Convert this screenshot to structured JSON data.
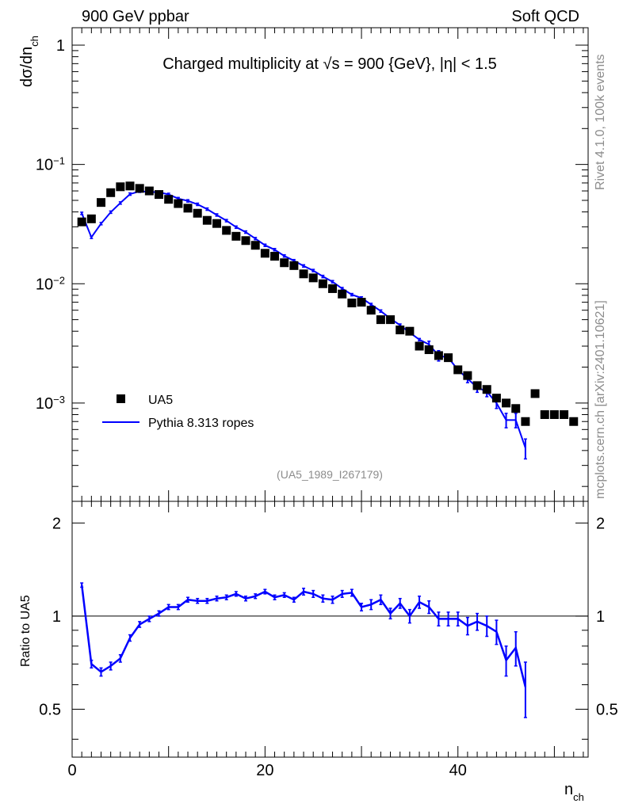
{
  "header": {
    "left": "900 GeV ppbar",
    "right": "Soft QCD",
    "side_top": "Rivet 4.1.0,  100k events",
    "side_bottom": "mcplots.cern.ch [arXiv:2401.10621]"
  },
  "chart_data": {
    "type": "scatter",
    "title_prefix": "Charged multiplicity at ",
    "title_sqrt": "√s",
    "title_suffix": " = 900 {GeV}, |η| < 1.5",
    "analysis_tag": "(UA5_1989_I267179)",
    "xlabel": "n",
    "xlabel_sub": "ch",
    "ylabel": "dσ/dn",
    "ylabel_sub": "ch",
    "ratio_ylabel": "Ratio to UA5",
    "xlim": [
      0,
      53.5
    ],
    "ylim": [
      0.00015,
      1.4
    ],
    "ratio_ylim": [
      0.35,
      2.35
    ],
    "x_ticks": [
      0,
      20,
      40
    ],
    "y_ticks_labels": [
      {
        "value": 1,
        "base": "1",
        "exp": ""
      },
      {
        "value": 0.1,
        "base": "10",
        "exp": "−1"
      },
      {
        "value": 0.01,
        "base": "10",
        "exp": "−2"
      },
      {
        "value": 0.001,
        "base": "10",
        "exp": "−3"
      }
    ],
    "ratio_ticks": [
      {
        "value": 0.5,
        "label": "0.5"
      },
      {
        "value": 1,
        "label": "1"
      },
      {
        "value": 2,
        "label": "2"
      }
    ],
    "colors": {
      "data": "#000000",
      "mc": "#0000ff"
    },
    "legend": {
      "placement": "bottom-left",
      "entries": [
        "UA5",
        "Pythia 8.313 ropes"
      ]
    },
    "series": [
      {
        "name": "UA5",
        "x": [
          1,
          2,
          3,
          4,
          5,
          6,
          7,
          8,
          9,
          10,
          11,
          12,
          13,
          14,
          15,
          16,
          17,
          18,
          19,
          20,
          21,
          22,
          23,
          24,
          25,
          26,
          27,
          28,
          29,
          30,
          31,
          32,
          33,
          34,
          35,
          36,
          37,
          38,
          39,
          40,
          41,
          42,
          43,
          44,
          45,
          46,
          47,
          48,
          49,
          50,
          51,
          52
        ],
        "values": [
          0.033,
          0.035,
          0.048,
          0.058,
          0.065,
          0.066,
          0.063,
          0.06,
          0.056,
          0.051,
          0.047,
          0.043,
          0.039,
          0.034,
          0.032,
          0.028,
          0.025,
          0.023,
          0.021,
          0.018,
          0.017,
          0.015,
          0.0142,
          0.0121,
          0.0112,
          0.01,
          0.0091,
          0.0082,
          0.0069,
          0.007,
          0.006,
          0.005,
          0.005,
          0.0041,
          0.004,
          0.003,
          0.0028,
          0.0025,
          0.0024,
          0.0019,
          0.0017,
          0.0014,
          0.0013,
          0.0011,
          0.001,
          0.0009,
          0.0007,
          0.0012,
          0.0008,
          0.0008,
          0.0008,
          0.0007
        ]
      },
      {
        "name": "Pythia 8.313 ropes",
        "x": [
          1,
          2,
          3,
          4,
          5,
          6,
          7,
          8,
          9,
          10,
          11,
          12,
          13,
          14,
          15,
          16,
          17,
          18,
          19,
          20,
          21,
          22,
          23,
          24,
          25,
          26,
          27,
          28,
          29,
          30,
          31,
          32,
          33,
          34,
          35,
          36,
          37,
          38,
          39,
          40,
          41,
          42,
          43,
          44,
          45,
          46,
          47
        ],
        "values": [
          0.0389,
          0.0245,
          0.0319,
          0.0398,
          0.0475,
          0.0564,
          0.0596,
          0.059,
          0.0585,
          0.0561,
          0.0517,
          0.0495,
          0.0463,
          0.0422,
          0.0377,
          0.0338,
          0.0298,
          0.0271,
          0.0239,
          0.021,
          0.0193,
          0.0171,
          0.0156,
          0.0141,
          0.0129,
          0.0115,
          0.0104,
          0.0091,
          0.0081,
          0.0076,
          0.0067,
          0.0059,
          0.0051,
          0.0045,
          0.0039,
          0.0034,
          0.0031,
          0.0025,
          0.0024,
          0.0019,
          0.0016,
          0.00135,
          0.00125,
          0.001,
          0.00072,
          0.00072,
          0.00042
        ],
        "errors": [
          0,
          0,
          0,
          0,
          0,
          0,
          0,
          0,
          0,
          0,
          0,
          0,
          0,
          0,
          0,
          0,
          0,
          0,
          0,
          0,
          0,
          0,
          0,
          0,
          0,
          0,
          0,
          0,
          0,
          0,
          0,
          0,
          0,
          0,
          0,
          0,
          0.0002,
          0.00025,
          0.00015,
          0.0001,
          0.00012,
          0.00012,
          0.00012,
          0.0001,
          0.0001,
          0.0001,
          8e-05
        ]
      }
    ],
    "ratio": {
      "x": [
        1,
        2,
        3,
        4,
        5,
        6,
        7,
        8,
        9,
        10,
        11,
        12,
        13,
        14,
        15,
        16,
        17,
        18,
        19,
        20,
        21,
        22,
        23,
        24,
        25,
        26,
        27,
        28,
        29,
        30,
        31,
        32,
        33,
        34,
        35,
        36,
        37,
        38,
        39,
        40,
        41,
        42,
        43,
        44,
        45,
        46,
        47
      ],
      "values": [
        1.26,
        0.7,
        0.66,
        0.69,
        0.73,
        0.85,
        0.94,
        0.98,
        1.02,
        1.07,
        1.07,
        1.13,
        1.12,
        1.12,
        1.14,
        1.15,
        1.18,
        1.14,
        1.16,
        1.2,
        1.15,
        1.17,
        1.13,
        1.2,
        1.18,
        1.14,
        1.13,
        1.18,
        1.19,
        1.07,
        1.09,
        1.13,
        1.02,
        1.1,
        1.0,
        1.11,
        1.07,
        0.98,
        0.98,
        0.98,
        0.93,
        0.96,
        0.93,
        0.89,
        0.72,
        0.79,
        0.59
      ],
      "errors": [
        0.02,
        0.02,
        0.02,
        0.02,
        0.02,
        0.02,
        0.02,
        0.02,
        0.02,
        0.02,
        0.02,
        0.02,
        0.02,
        0.02,
        0.02,
        0.02,
        0.02,
        0.02,
        0.02,
        0.02,
        0.02,
        0.02,
        0.02,
        0.03,
        0.03,
        0.03,
        0.03,
        0.03,
        0.03,
        0.03,
        0.04,
        0.04,
        0.04,
        0.04,
        0.05,
        0.05,
        0.05,
        0.05,
        0.05,
        0.05,
        0.06,
        0.06,
        0.07,
        0.08,
        0.08,
        0.1,
        0.12
      ]
    }
  }
}
